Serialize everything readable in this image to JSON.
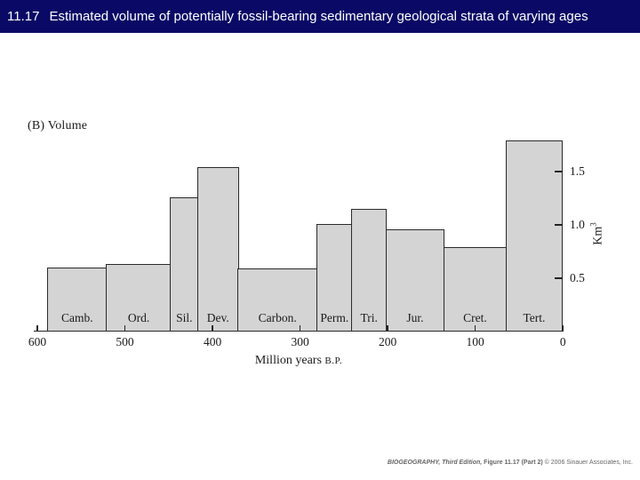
{
  "banner": {
    "figure_number": "11.17",
    "title": "Estimated volume of potentially fossil-bearing sedimentary geological strata of varying ages",
    "bg_color": "#0A0A66",
    "text_color": "#FFFFFF"
  },
  "chart_data": {
    "type": "bar",
    "panel_label": "(B) Volume",
    "xlabel_main": "Million years",
    "xlabel_unit": "B.P.",
    "ylabel_base": "Km",
    "ylabel_exp": "3",
    "xlim": [
      600,
      0
    ],
    "ylim": [
      0,
      1.85
    ],
    "x_ticks": [
      "600",
      "500",
      "400",
      "300",
      "200",
      "100",
      "0"
    ],
    "y_ticks": [
      {
        "value": 0.5,
        "label": "0.5"
      },
      {
        "value": 1.0,
        "label": "1.0"
      },
      {
        "value": 1.5,
        "label": "1.5"
      }
    ],
    "grid": false,
    "bar_fill": "#D4D4D4",
    "bar_stroke": "#2B2B2B",
    "axis_color": "#222222",
    "bars": [
      {
        "label": "Camb.",
        "from_ma": 589,
        "to_ma": 520,
        "value": 0.6
      },
      {
        "label": "Ord.",
        "from_ma": 520,
        "to_ma": 447,
        "value": 0.63
      },
      {
        "label": "Sil.",
        "from_ma": 447,
        "to_ma": 416,
        "value": 1.26
      },
      {
        "label": "Dev.",
        "from_ma": 416,
        "to_ma": 370,
        "value": 1.54
      },
      {
        "label": "Carbon.",
        "from_ma": 370,
        "to_ma": 280,
        "value": 0.59
      },
      {
        "label": "Perm.",
        "from_ma": 280,
        "to_ma": 240,
        "value": 1.01
      },
      {
        "label": "Tri.",
        "from_ma": 240,
        "to_ma": 201,
        "value": 1.15
      },
      {
        "label": "Jur.",
        "from_ma": 201,
        "to_ma": 135,
        "value": 0.96
      },
      {
        "label": "Cret.",
        "from_ma": 135,
        "to_ma": 64,
        "value": 0.79
      },
      {
        "label": "Tert.",
        "from_ma": 64,
        "to_ma": 0,
        "value": 1.79
      }
    ]
  },
  "footer": {
    "credit_book": "BIOGEOGRAPHY, Third Edition,",
    "credit_figure": " Figure 11.17 (Part 2)",
    "credit_copyright": " © 2006 Sinauer Associates, Inc."
  }
}
